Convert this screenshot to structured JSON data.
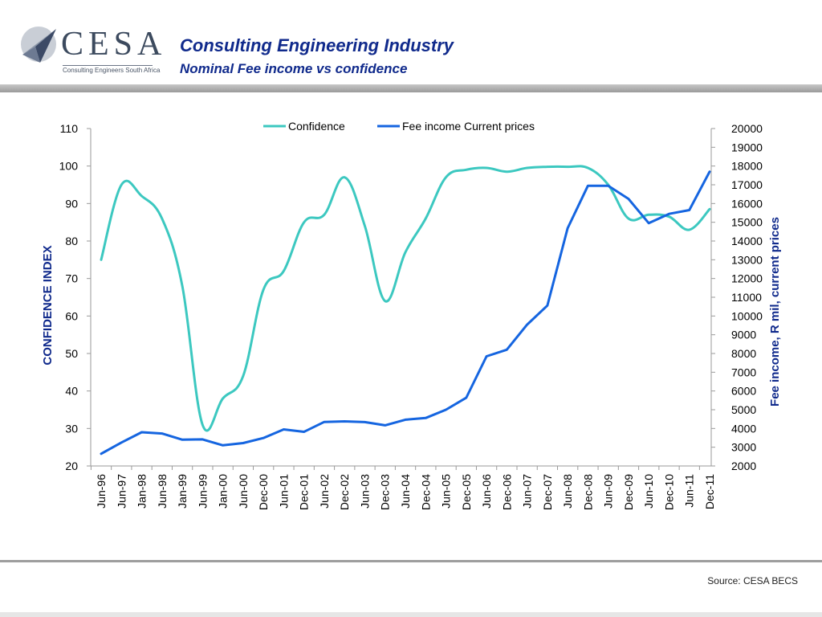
{
  "header": {
    "logo_text": "CESA",
    "logo_subtitle": "Consulting Engineers South Africa",
    "title": "Consulting Engineering Industry",
    "subtitle": "Nominal Fee income vs confidence"
  },
  "footer": {
    "source": "Source: CESA BECS"
  },
  "colors": {
    "confidence": "#3cc8c0",
    "fee": "#1565e0",
    "title": "#102a8c",
    "axis_label": "#102a8c"
  },
  "chart_data": {
    "type": "line",
    "categories": [
      "Jun-96",
      "Jun-97",
      "Jan-98",
      "Jun-98",
      "Jan-99",
      "Jun-99",
      "Jan-00",
      "Jun-00",
      "Dec-00",
      "Jun-01",
      "Dec-01",
      "Jun-02",
      "Dec-02",
      "Jun-03",
      "Dec-03",
      "Jun-04",
      "Dec-04",
      "Jun-05",
      "Dec-05",
      "Jun-06",
      "Dec-06",
      "Jun-07",
      "Dec-07",
      "Jun-08",
      "Dec-08",
      "Jun-09",
      "Dec-09",
      "Jun-10",
      "Dec-10",
      "Jun-11",
      "Dec-11"
    ],
    "series": [
      {
        "name": "Confidence",
        "axis": "left",
        "color": "#3cc8c0",
        "values": [
          75,
          95,
          92,
          86,
          68,
          31,
          38,
          44,
          67,
          72,
          85,
          87,
          97,
          84,
          64,
          77,
          86,
          97,
          99,
          99.5,
          98.5,
          99.5,
          99.8,
          99.8,
          99.5,
          95,
          86,
          87,
          86.5,
          83,
          88.5
        ]
      },
      {
        "name": "Fee income Current prices",
        "axis": "right",
        "color": "#1565e0",
        "values": [
          2650,
          3250,
          3800,
          3730,
          3400,
          3420,
          3100,
          3220,
          3490,
          3950,
          3820,
          4350,
          4380,
          4340,
          4170,
          4470,
          4560,
          5000,
          5640,
          7850,
          8200,
          9540,
          10560,
          14680,
          16950,
          16950,
          16250,
          14950,
          15450,
          15650,
          17700
        ]
      }
    ],
    "ylabel": "CONFIDENCE INDEX",
    "ylim": [
      20,
      110
    ],
    "yticks": [
      20,
      30,
      40,
      50,
      60,
      70,
      80,
      90,
      100,
      110
    ],
    "y2label": "Fee income, R mil, current prices",
    "y2lim": [
      2000,
      20000
    ],
    "y2ticks": [
      2000,
      3000,
      4000,
      5000,
      6000,
      7000,
      8000,
      9000,
      10000,
      11000,
      12000,
      13000,
      14000,
      15000,
      16000,
      17000,
      18000,
      19000,
      20000
    ],
    "legend": "top",
    "grid": false
  }
}
